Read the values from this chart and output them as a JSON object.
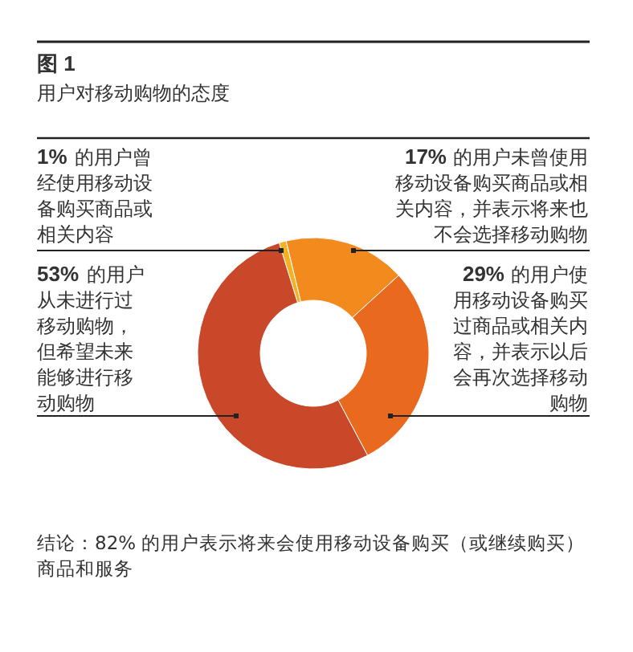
{
  "chart_data": {
    "type": "donut",
    "title": "图 1",
    "subtitle": "用户对移动购物的态度",
    "categories": [
      "的用户曾经使用移动设备购买商品或相关内容",
      "的用户未曾使用移动设备购买商品或相关内容，并表示将来也不会选择移动购物",
      "的用户使用移动设备购买过商品或相关内容，并表示以后会再次选择移动购物",
      "的用户从未进行过移动购物，但希望未来能够进行移动购物"
    ],
    "values": [
      1,
      17,
      29,
      53
    ],
    "value_labels": [
      "1%",
      "17%",
      "29%",
      "53%"
    ],
    "colors": [
      "#f4b223",
      "#f28a1e",
      "#e9691f",
      "#c9482a"
    ],
    "annotations": [
      "结论：82% 的用户表示将来会使用移动设备购买（或继续购买）商品和服务"
    ]
  }
}
